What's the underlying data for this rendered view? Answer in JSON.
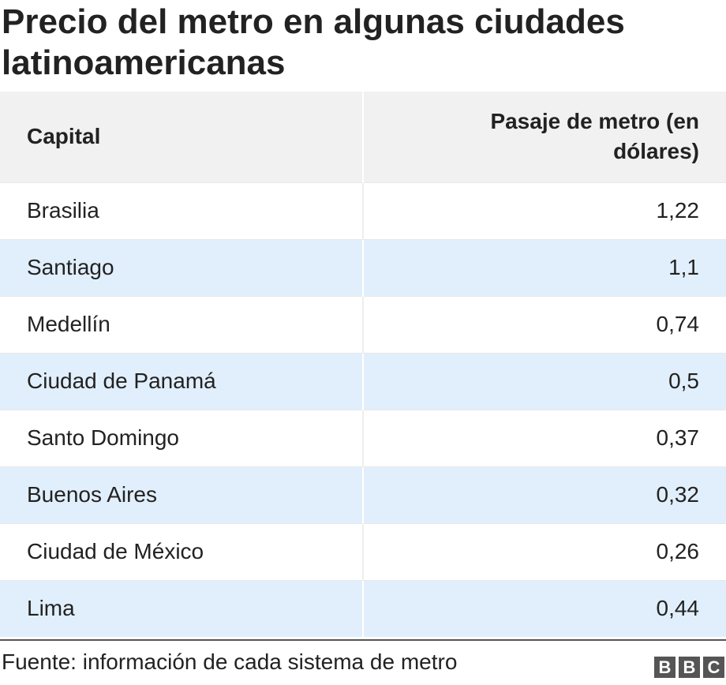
{
  "chart_data": {
    "type": "table",
    "title": "Precio del metro en algunas ciudades latinoamericanas",
    "columns": [
      "Capital",
      "Pasaje de metro (en dólares)"
    ],
    "rows": [
      {
        "capital": "Brasilia",
        "value": "1,22"
      },
      {
        "capital": "Santiago",
        "value": "1,1"
      },
      {
        "capital": "Medellín",
        "value": "0,74"
      },
      {
        "capital": "Ciudad de Panamá",
        "value": "0,5"
      },
      {
        "capital": "Santo Domingo",
        "value": "0,37"
      },
      {
        "capital": "Buenos Aires",
        "value": "0,32"
      },
      {
        "capital": "Ciudad de México",
        "value": "0,26"
      },
      {
        "capital": "Lima",
        "value": "0,44"
      }
    ],
    "source": "Fuente: información de cada sistema de metro"
  },
  "colors": {
    "header_bg": "#f1f1f1",
    "stripe_bg": "#e1effc",
    "text": "#222222",
    "logo": "#555555"
  },
  "logo": {
    "letters": [
      "B",
      "B",
      "C"
    ]
  }
}
